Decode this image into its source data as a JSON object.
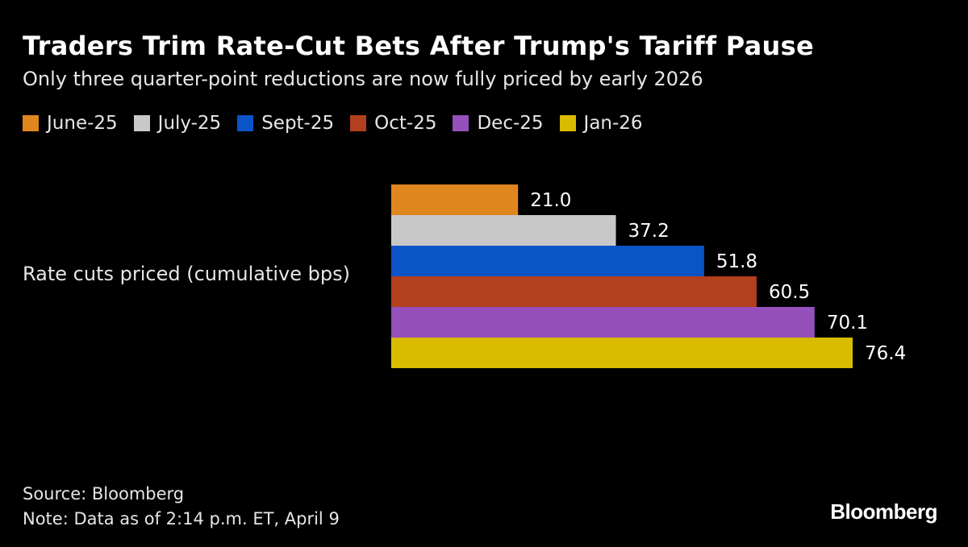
{
  "title": "Traders Trim Rate-Cut Bets After Trump's Tariff Pause",
  "subtitle": "Only three quarter-point reductions are now fully priced by early 2026",
  "category_label": "Rate cuts priced (cumulative bps)",
  "source": "Source: Bloomberg",
  "note": "Note: Data as of 2:14 p.m. ET, April 9",
  "logo": "Bloomberg",
  "chart_data": {
    "type": "bar",
    "orientation": "horizontal",
    "title": "Traders Trim Rate-Cut Bets After Trump's Tariff Pause",
    "subtitle": "Only three quarter-point reductions are now fully priced by early 2026",
    "categories": [
      "Rate cuts priced (cumulative bps)"
    ],
    "xlim": [
      0,
      76.4
    ],
    "grid": false,
    "legend_position": "top-left",
    "series": [
      {
        "name": "June-25",
        "values": [
          21.0
        ],
        "label": "21.0",
        "color": "#e0861f"
      },
      {
        "name": "July-25",
        "values": [
          37.2
        ],
        "label": "37.2",
        "color": "#c8c8c8"
      },
      {
        "name": "Sept-25",
        "values": [
          51.8
        ],
        "label": "51.8",
        "color": "#0a54c8"
      },
      {
        "name": "Oct-25",
        "values": [
          60.5
        ],
        "label": "60.5",
        "color": "#b23f1d"
      },
      {
        "name": "Dec-25",
        "values": [
          70.1
        ],
        "label": "70.1",
        "color": "#9550bb"
      },
      {
        "name": "Jan-26",
        "values": [
          76.4
        ],
        "label": "76.4",
        "color": "#d9bb00"
      }
    ]
  }
}
